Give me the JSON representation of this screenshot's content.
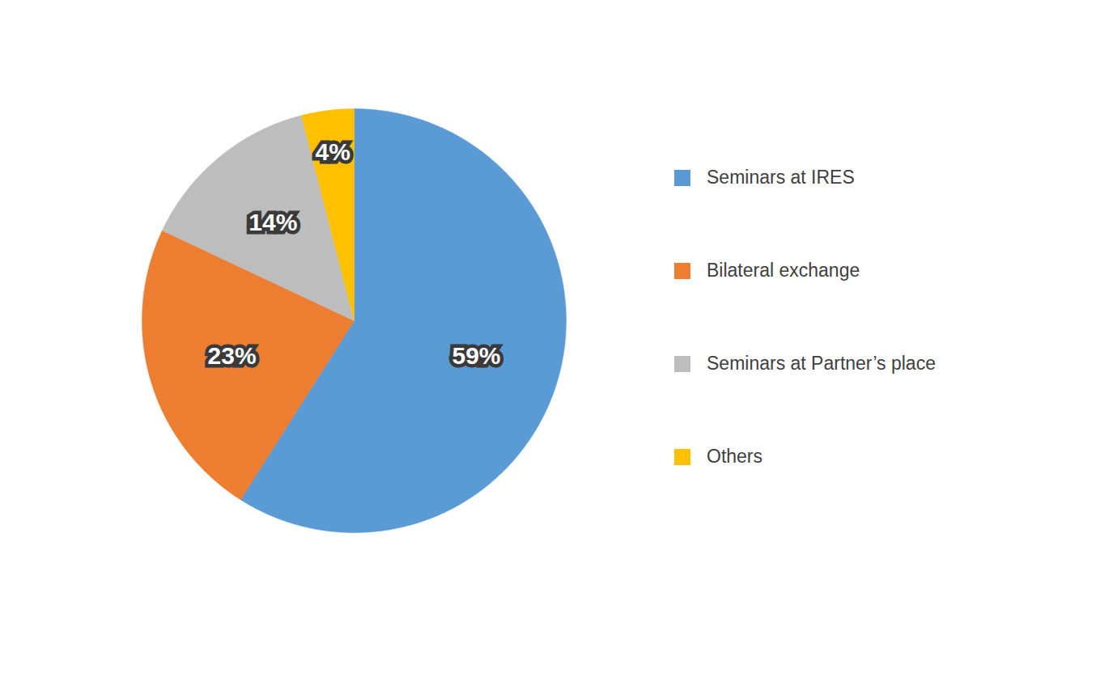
{
  "chart_data": {
    "type": "pie",
    "categories": [
      "Seminars at IRES",
      "Bilateral exchange",
      "Seminars at Partner’s place",
      "Others"
    ],
    "values": [
      59,
      23,
      14,
      4
    ],
    "value_labels": [
      "59%",
      "23%",
      "14%",
      "4%"
    ],
    "colors": [
      "#5b9bd5",
      "#ed7d31",
      "#bdbdbd",
      "#ffc000"
    ],
    "data_labels": true,
    "legend": "right"
  }
}
